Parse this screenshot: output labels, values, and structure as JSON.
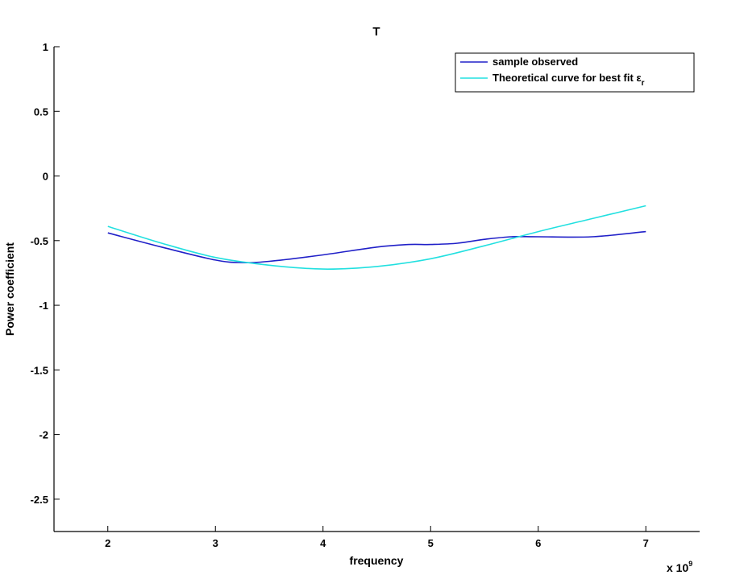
{
  "chart_data": {
    "type": "line",
    "title": "T",
    "xlabel": "frequency",
    "ylabel": "Power coefficient",
    "x_multiplier_label": "x 10",
    "x_multiplier_exponent": "9",
    "xlim": [
      1.5,
      7.5
    ],
    "ylim": [
      -2.75,
      1
    ],
    "xticks": [
      2,
      3,
      4,
      5,
      6,
      7
    ],
    "xtick_labels": [
      "2",
      "3",
      "4",
      "5",
      "6",
      "7"
    ],
    "yticks": [
      1,
      0.5,
      0,
      -0.5,
      -1,
      -1.5,
      -2,
      -2.5
    ],
    "ytick_labels": [
      "1",
      "0.5",
      "0",
      "-0.5",
      "-1",
      "-1.5",
      "-2",
      "-2.5"
    ],
    "grid": false,
    "legend_position": "top-right",
    "series": [
      {
        "name": "sample observed",
        "color": "#2020c8",
        "x": [
          2.0,
          2.5,
          3.0,
          3.25,
          3.5,
          4.0,
          4.5,
          4.8,
          5.0,
          5.25,
          5.5,
          5.75,
          6.0,
          6.5,
          7.0
        ],
        "y": [
          -0.44,
          -0.55,
          -0.65,
          -0.67,
          -0.66,
          -0.61,
          -0.55,
          -0.53,
          -0.53,
          -0.52,
          -0.49,
          -0.47,
          -0.47,
          -0.47,
          -0.43
        ]
      },
      {
        "name": "Theoretical curve for best fit ",
        "name_symbol": "ε",
        "name_subscript": "r",
        "color": "#22e0e0",
        "x": [
          2.0,
          2.5,
          3.0,
          3.5,
          4.0,
          4.5,
          5.0,
          5.5,
          6.0,
          6.5,
          7.0
        ],
        "y": [
          -0.39,
          -0.52,
          -0.63,
          -0.69,
          -0.72,
          -0.7,
          -0.64,
          -0.54,
          -0.43,
          -0.33,
          -0.23
        ]
      }
    ]
  }
}
